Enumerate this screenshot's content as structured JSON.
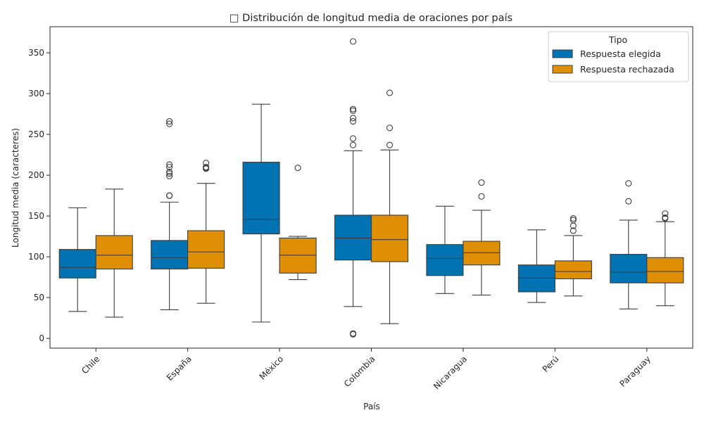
{
  "chart_data": {
    "type": "box",
    "title": "□ Distribución de longitud media de oraciones por país",
    "xlabel": "País",
    "ylabel": "Longitud media (caracteres)",
    "ylim": [
      -12,
      382
    ],
    "yticks": [
      0,
      50,
      100,
      150,
      200,
      250,
      300,
      350
    ],
    "categories": [
      "Chile",
      "España",
      "México",
      "Colombia",
      "Nicaragua",
      "Perú",
      "Paraguay"
    ],
    "legend": {
      "title": "Tipo",
      "position": "top-right"
    },
    "series": [
      {
        "name": "Respuesta elegida",
        "color": "#0173b2",
        "boxes": [
          {
            "whisker_low": 33,
            "q1": 74,
            "median": 87,
            "q3": 109,
            "whisker_high": 160,
            "outliers": []
          },
          {
            "whisker_low": 35,
            "q1": 85,
            "median": 99,
            "q3": 120,
            "whisker_high": 167,
            "outliers": [
              175,
              175,
              199,
              202,
              204,
              210,
              213,
              263,
              266
            ]
          },
          {
            "whisker_low": 20,
            "q1": 128,
            "median": 146,
            "q3": 216,
            "whisker_high": 287,
            "outliers": []
          },
          {
            "whisker_low": 39,
            "q1": 96,
            "median": 123,
            "q3": 151,
            "whisker_high": 230,
            "outliers": [
              5,
              6,
              237,
              245,
              266,
              270,
              279,
              281,
              364
            ]
          },
          {
            "whisker_low": 55,
            "q1": 77,
            "median": 98,
            "q3": 115,
            "whisker_high": 162,
            "outliers": []
          },
          {
            "whisker_low": 44,
            "q1": 57,
            "median": 74,
            "q3": 90,
            "whisker_high": 133,
            "outliers": []
          },
          {
            "whisker_low": 36,
            "q1": 68,
            "median": 81,
            "q3": 103,
            "whisker_high": 145,
            "outliers": [
              168,
              190
            ]
          }
        ]
      },
      {
        "name": "Respuesta rechazada",
        "color": "#de8f05",
        "boxes": [
          {
            "whisker_low": 26,
            "q1": 85,
            "median": 102,
            "q3": 126,
            "whisker_high": 183,
            "outliers": []
          },
          {
            "whisker_low": 43,
            "q1": 86,
            "median": 106,
            "q3": 132,
            "whisker_high": 190,
            "outliers": [
              208,
              209,
              210,
              215
            ]
          },
          {
            "whisker_low": 72,
            "q1": 80,
            "median": 102,
            "q3": 123,
            "whisker_high": 125,
            "outliers": [
              209
            ]
          },
          {
            "whisker_low": 18,
            "q1": 94,
            "median": 121,
            "q3": 151,
            "whisker_high": 231,
            "outliers": [
              237,
              258,
              301
            ]
          },
          {
            "whisker_low": 53,
            "q1": 90,
            "median": 105,
            "q3": 119,
            "whisker_high": 157,
            "outliers": [
              174,
              191
            ]
          },
          {
            "whisker_low": 52,
            "q1": 73,
            "median": 82,
            "q3": 95,
            "whisker_high": 126,
            "outliers": [
              132,
              138,
              145,
              147
            ]
          },
          {
            "whisker_low": 40,
            "q1": 68,
            "median": 82,
            "q3": 99,
            "whisker_high": 143,
            "outliers": [
              147,
              148,
              153
            ]
          }
        ]
      }
    ]
  }
}
